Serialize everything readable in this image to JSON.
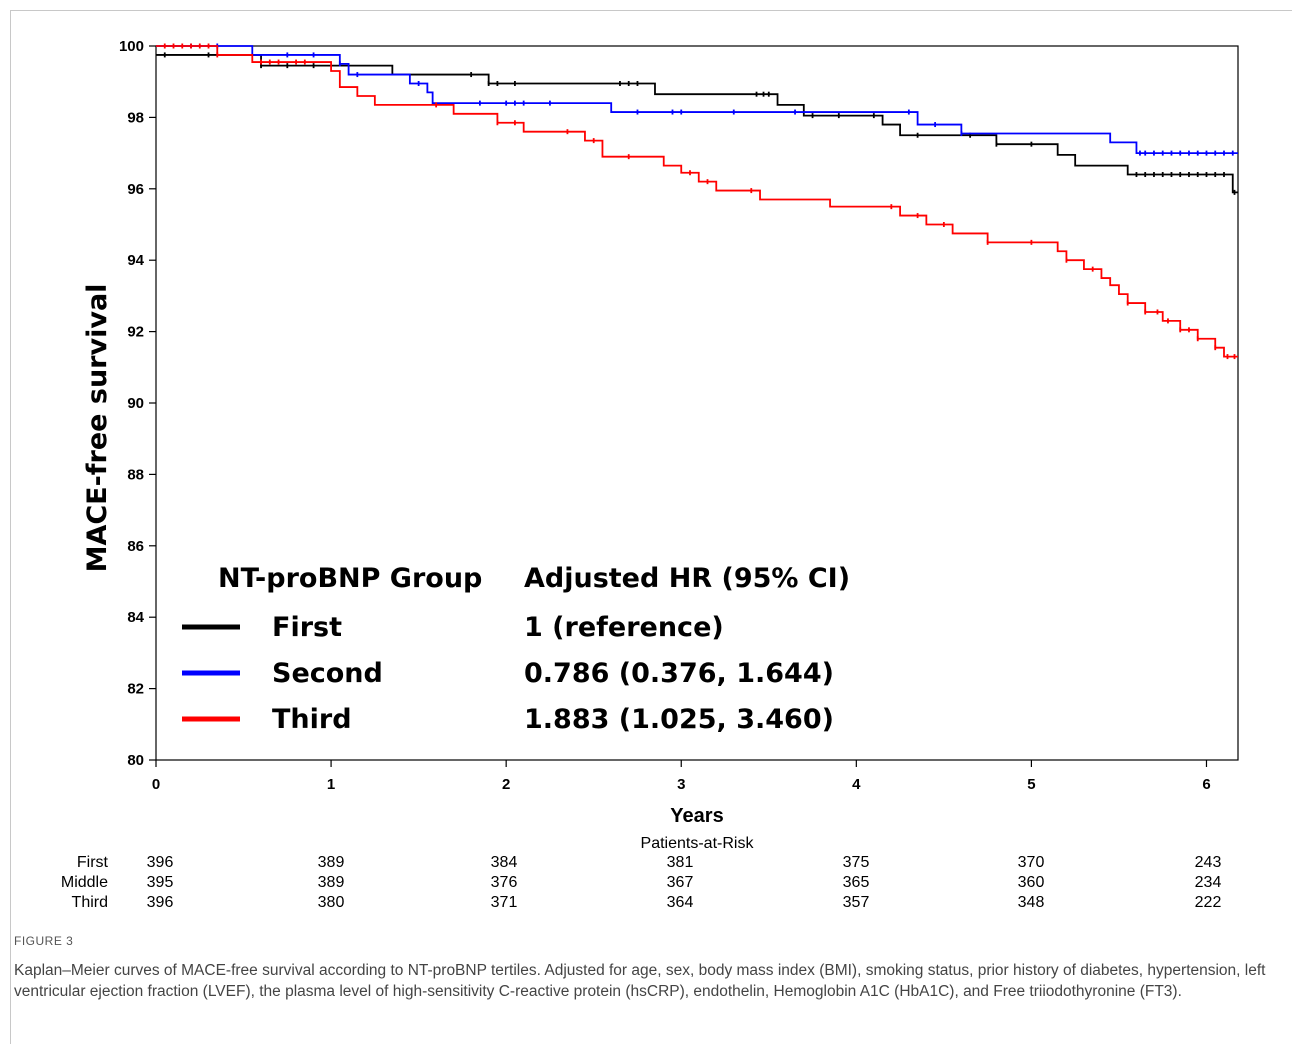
{
  "figure_label": "FIGURE 3",
  "caption": "Kaplan–Meier curves of MACE-free survival according to NT-proBNP tertiles. Adjusted for age, sex, body mass index (BMI), smoking status, prior history of diabetes, hypertension, left ventricular ejection fraction (LVEF), the plasma level of high-sensitivity C-reactive protein (hsCRP), endothelin, Hemoglobin A1C (HbA1C), and Free triiodothyronine (FT3).",
  "chart_data": {
    "type": "line",
    "step": true,
    "xlabel": "Years",
    "ylabel": "MACE-free survival",
    "xlim": [
      0,
      6.18
    ],
    "ylim": [
      80,
      100
    ],
    "xticks": [
      "0",
      "1",
      "2",
      "3",
      "4",
      "5",
      "6"
    ],
    "yticks": [
      "80",
      "82",
      "84",
      "86",
      "88",
      "90",
      "92",
      "94",
      "96",
      "98",
      "100"
    ],
    "grid": false,
    "legend": {
      "position": "bottom-left",
      "group_header": "NT-proBNP Group",
      "hr_header": "Adjusted HR (95% CI)",
      "entries": [
        {
          "name": "First",
          "color": "#000000",
          "hr": "1 (reference)"
        },
        {
          "name": "Second",
          "color": "#0000ff",
          "hr": "0.786 (0.376, 1.644)"
        },
        {
          "name": "Third",
          "color": "#ff0000",
          "hr": "1.883 (1.025, 3.460)"
        }
      ]
    },
    "series": [
      {
        "name": "First",
        "color": "#000000",
        "points": [
          [
            0,
            99.75
          ],
          [
            0.6,
            99.45
          ],
          [
            1.05,
            99.45
          ],
          [
            1.35,
            99.2
          ],
          [
            1.9,
            98.95
          ],
          [
            2.85,
            98.65
          ],
          [
            3.55,
            98.35
          ],
          [
            3.7,
            98.05
          ],
          [
            4.15,
            97.8
          ],
          [
            4.25,
            97.5
          ],
          [
            4.75,
            97.5
          ],
          [
            4.8,
            97.25
          ],
          [
            5.05,
            97.25
          ],
          [
            5.15,
            96.95
          ],
          [
            5.25,
            96.65
          ],
          [
            5.55,
            96.4
          ],
          [
            6.15,
            95.9
          ],
          [
            6.18,
            95.9
          ]
        ],
        "censor_x": [
          0.05,
          0.3,
          0.6,
          0.75,
          0.9,
          1.8,
          1.9,
          1.95,
          2.05,
          2.65,
          2.7,
          2.75,
          3.43,
          3.47,
          3.5,
          3.75,
          3.9,
          4.1,
          4.35,
          4.65,
          4.8,
          5.0,
          5.6,
          5.65,
          5.7,
          5.75,
          5.8,
          5.85,
          5.9,
          5.95,
          6.0,
          6.05,
          6.1,
          6.16
        ]
      },
      {
        "name": "Second",
        "color": "#0000ff",
        "points": [
          [
            0,
            100
          ],
          [
            0.55,
            99.75
          ],
          [
            1.05,
            99.5
          ],
          [
            1.1,
            99.2
          ],
          [
            1.3,
            99.2
          ],
          [
            1.45,
            98.95
          ],
          [
            1.55,
            98.7
          ],
          [
            1.58,
            98.4
          ],
          [
            2.6,
            98.4
          ],
          [
            2.6,
            98.15
          ],
          [
            3.8,
            98.15
          ],
          [
            4.35,
            97.8
          ],
          [
            4.6,
            97.55
          ],
          [
            5.4,
            97.55
          ],
          [
            5.45,
            97.3
          ],
          [
            5.6,
            97.0
          ],
          [
            6.18,
            97.0
          ]
        ],
        "censor_x": [
          0.2,
          0.35,
          0.75,
          0.9,
          1.05,
          1.15,
          1.5,
          1.85,
          2.0,
          2.05,
          2.1,
          2.25,
          2.75,
          2.95,
          3.0,
          3.3,
          3.65,
          4.3,
          4.45,
          4.6,
          5.62,
          5.65,
          5.7,
          5.75,
          5.8,
          5.85,
          5.9,
          5.95,
          6.0,
          6.05,
          6.1,
          6.15
        ]
      },
      {
        "name": "Third",
        "color": "#ff0000",
        "points": [
          [
            0,
            100
          ],
          [
            0.35,
            99.75
          ],
          [
            0.5,
            99.75
          ],
          [
            0.55,
            99.55
          ],
          [
            0.95,
            99.55
          ],
          [
            1.0,
            99.3
          ],
          [
            1.05,
            98.85
          ],
          [
            1.15,
            98.6
          ],
          [
            1.25,
            98.35
          ],
          [
            1.6,
            98.35
          ],
          [
            1.7,
            98.1
          ],
          [
            1.85,
            98.1
          ],
          [
            1.95,
            97.85
          ],
          [
            2.1,
            97.6
          ],
          [
            2.35,
            97.6
          ],
          [
            2.45,
            97.35
          ],
          [
            2.5,
            97.35
          ],
          [
            2.55,
            96.9
          ],
          [
            2.85,
            96.9
          ],
          [
            2.9,
            96.65
          ],
          [
            3.0,
            96.45
          ],
          [
            3.1,
            96.2
          ],
          [
            3.2,
            95.95
          ],
          [
            3.45,
            95.7
          ],
          [
            3.85,
            95.5
          ],
          [
            4.2,
            95.5
          ],
          [
            4.25,
            95.25
          ],
          [
            4.4,
            95.0
          ],
          [
            4.55,
            94.75
          ],
          [
            4.75,
            94.5
          ],
          [
            5.1,
            94.5
          ],
          [
            5.15,
            94.25
          ],
          [
            5.2,
            94.0
          ],
          [
            5.3,
            93.75
          ],
          [
            5.4,
            93.5
          ],
          [
            5.45,
            93.3
          ],
          [
            5.5,
            93.05
          ],
          [
            5.55,
            92.8
          ],
          [
            5.65,
            92.55
          ],
          [
            5.75,
            92.3
          ],
          [
            5.85,
            92.05
          ],
          [
            5.95,
            91.8
          ],
          [
            6.05,
            91.55
          ],
          [
            6.1,
            91.3
          ],
          [
            6.18,
            91.3
          ]
        ],
        "censor_x": [
          0.05,
          0.1,
          0.15,
          0.2,
          0.25,
          0.3,
          0.35,
          0.6,
          0.65,
          0.7,
          0.8,
          0.85,
          1.6,
          1.95,
          2.05,
          2.35,
          2.5,
          2.7,
          3.05,
          3.15,
          3.4,
          4.2,
          4.35,
          4.5,
          4.75,
          5.0,
          5.2,
          5.35,
          5.55,
          5.65,
          5.72,
          5.78,
          5.85,
          5.9,
          5.95,
          6.05,
          6.12,
          6.16
        ]
      }
    ],
    "risk_table": {
      "title": "Patients-at-Risk",
      "rows": [
        {
          "label": "First",
          "values": [
            "396",
            "389",
            "384",
            "381",
            "375",
            "370",
            "243"
          ]
        },
        {
          "label": "Middle",
          "values": [
            "395",
            "389",
            "376",
            "367",
            "365",
            "360",
            "234"
          ]
        },
        {
          "label": "Third",
          "values": [
            "396",
            "380",
            "371",
            "364",
            "357",
            "348",
            "222"
          ]
        }
      ]
    }
  }
}
